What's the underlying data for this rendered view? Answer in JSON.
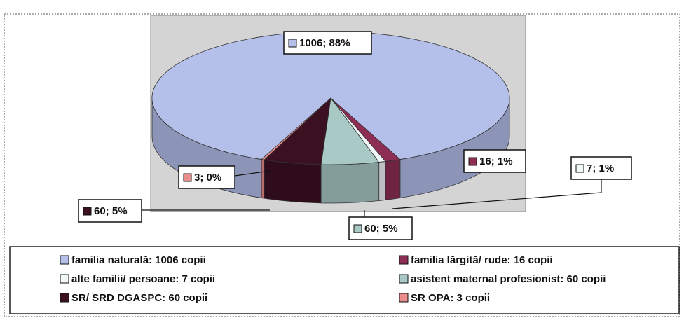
{
  "chart_data": {
    "type": "pie3d",
    "categories": [
      "familia naturală: 1006 copii",
      "familia lărgită/ rude: 16 copii",
      "alte familii/ persoane: 7 copii",
      "asistent maternal profesionist: 60 copii",
      "SR/ SRD DGASPC: 60 copii",
      "SR OPA: 3 copii"
    ],
    "values": [
      1006,
      16,
      7,
      60,
      60,
      3
    ],
    "value_labels": [
      "1006; 88%",
      "16; 1%",
      "7; 1%",
      "60; 5%",
      "60; 5%",
      "3; 0%"
    ],
    "colors": [
      "#b4bfea",
      "#8e2e55",
      "#f2f7f7",
      "#a9c9c7",
      "#3b1021",
      "#e98c8c"
    ]
  }
}
